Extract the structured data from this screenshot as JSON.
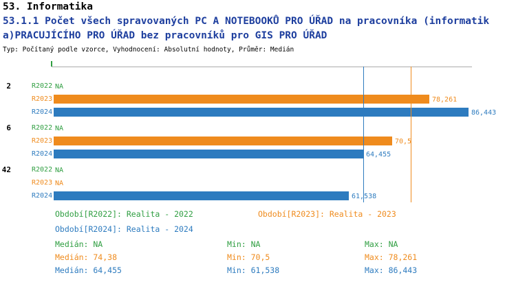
{
  "header": {
    "section_title": "53. Informatika",
    "indicator_title_line1": "53.1.1 Počet všech spravovaných PC A NOTEBOOKŮ PRO ÚŘAD na pracovníka (informatik",
    "indicator_title_line2": "a)PRACUJÍCÍHO PRO ÚŘAD bez pracovníků pro GIS PRO ÚŘAD",
    "meta_line": "Typ: Počítaný podle vzorce, Vyhodnocení: Absolutní hodnoty, Průměr: Medián"
  },
  "colors": {
    "green_2022": "#2f9e41",
    "orange_2023": "#ef8b1d",
    "blue_2024": "#2d7bbf",
    "axis_gray": "#aaaaaa",
    "title_blue": "#1d3e9e"
  },
  "chart_data": {
    "type": "bar",
    "orientation": "horizontal",
    "title": "53.1.1 Počet všech spravovaných PC A NOTEBOOKŮ PRO ÚŘAD na pracovníka (informatika) PRACUJÍCÍHO PRO ÚŘAD bez pracovníků pro GIS PRO ÚŘAD",
    "value_axis_max": 86.443,
    "xlim": [
      0,
      86.443
    ],
    "grid": false,
    "series_colors": {
      "R2022": "green_2022",
      "R2023": "orange_2023",
      "R2024": "blue_2024"
    },
    "groups": [
      {
        "label": "2",
        "bars": [
          {
            "series": "R2022",
            "value": null,
            "display": "NA"
          },
          {
            "series": "R2023",
            "value": 78.261,
            "display": "78,261"
          },
          {
            "series": "R2024",
            "value": 86.443,
            "display": "86,443"
          }
        ]
      },
      {
        "label": "6",
        "bars": [
          {
            "series": "R2022",
            "value": null,
            "display": "NA"
          },
          {
            "series": "R2023",
            "value": 70.5,
            "display": "70,5"
          },
          {
            "series": "R2024",
            "value": 64.455,
            "display": "64,455"
          }
        ]
      },
      {
        "label": "42",
        "bars": [
          {
            "series": "R2022",
            "value": null,
            "display": "NA"
          },
          {
            "series": "R2023",
            "value": null,
            "display": "NA"
          },
          {
            "series": "R2024",
            "value": 61.538,
            "display": "61,538"
          }
        ]
      }
    ],
    "median_lines": [
      {
        "series": "R2023",
        "value": 74.38
      },
      {
        "series": "R2024",
        "value": 64.455
      }
    ]
  },
  "legend": {
    "r2022": "Období[R2022]: Realita - 2022",
    "r2023": "Období[R2023]: Realita - 2023",
    "r2024": "Období[R2024]: Realita - 2024"
  },
  "stats": {
    "rows": [
      {
        "series": "R2022",
        "median": "Medián: NA",
        "min": "Min: NA",
        "max": "Max: NA"
      },
      {
        "series": "R2023",
        "median": "Medián: 74,38",
        "min": "Min: 70,5",
        "max": "Max: 78,261"
      },
      {
        "series": "R2024",
        "median": "Medián: 64,455",
        "min": "Min: 61,538",
        "max": "Max: 86,443"
      }
    ]
  }
}
